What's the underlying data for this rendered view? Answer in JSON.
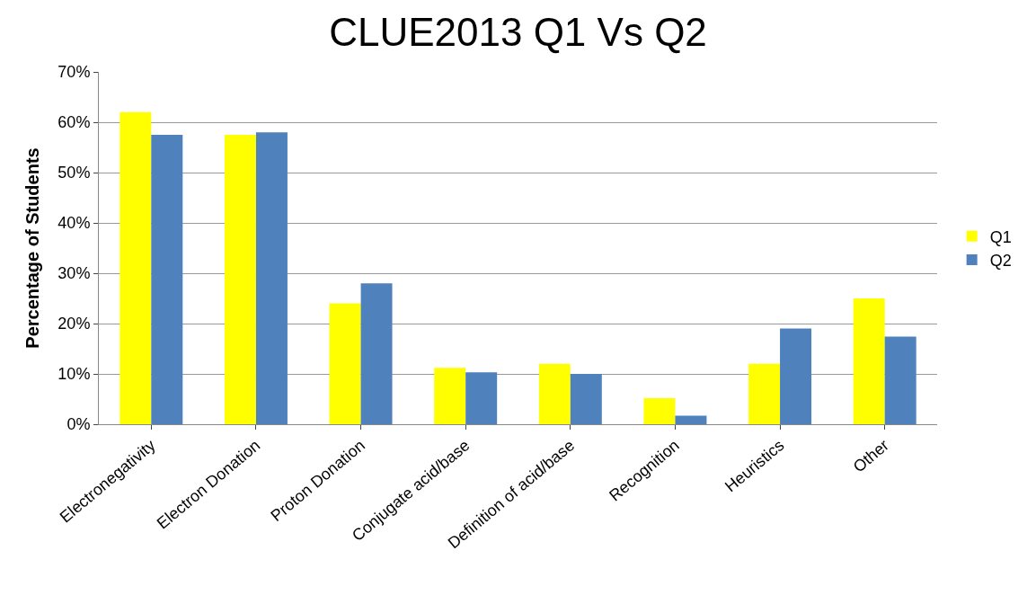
{
  "chart_data": {
    "type": "bar",
    "title": "CLUE2013 Q1 Vs Q2",
    "ylabel": "Percentage of Students",
    "categories": [
      "Electronegativity",
      "Electron Donation",
      "Proton Donation",
      "Conjugate acid/base",
      "Definition of acid/base",
      "Recognition",
      "Heuristics",
      "Other"
    ],
    "series": [
      {
        "name": "Q1",
        "color": "#ffff00",
        "values": [
          62,
          57.5,
          24,
          11.2,
          12,
          5.2,
          12,
          25
        ]
      },
      {
        "name": "Q2",
        "color": "#4f81bd",
        "values": [
          57.5,
          58,
          28,
          10.3,
          10,
          1.7,
          19,
          17.4
        ]
      }
    ],
    "ylim": [
      0,
      70
    ],
    "yticks": [
      {
        "value": 0,
        "label": "0%"
      },
      {
        "value": 10,
        "label": "10%"
      },
      {
        "value": 20,
        "label": "20%"
      },
      {
        "value": 30,
        "label": "30%"
      },
      {
        "value": 40,
        "label": "40%"
      },
      {
        "value": 50,
        "label": "50%"
      },
      {
        "value": 60,
        "label": "60%"
      },
      {
        "value": 70,
        "label": "70%"
      }
    ],
    "grid": "y",
    "legend": "right"
  }
}
